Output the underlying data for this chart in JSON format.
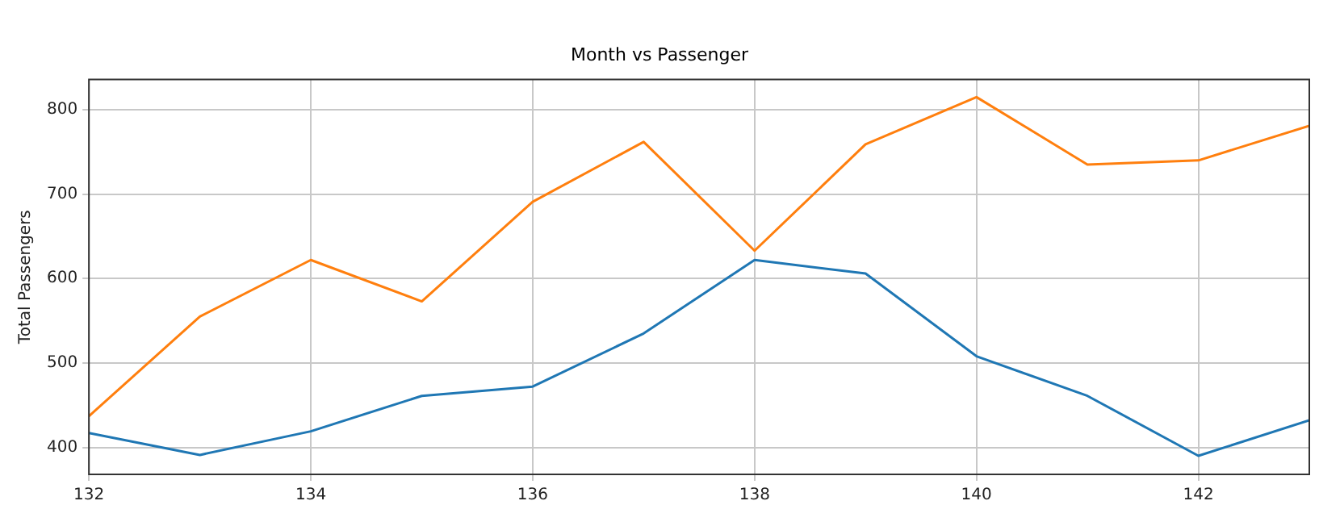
{
  "chart_data": {
    "type": "line",
    "title": "Month vs Passenger",
    "ylabel": "Total Passengers",
    "x": [
      132,
      133,
      134,
      135,
      136,
      137,
      138,
      139,
      140,
      141,
      142,
      143
    ],
    "series": [
      {
        "color": "#1f77b4",
        "values": [
          417,
          391,
          419,
          461,
          472,
          535,
          622,
          606,
          508,
          461,
          390,
          432
        ]
      },
      {
        "color": "#ff7f0e",
        "values": [
          437,
          555,
          622,
          573,
          691,
          762,
          633,
          759,
          815,
          735,
          740,
          781
        ]
      }
    ],
    "xlim": [
      132,
      143
    ],
    "xticks": [
      132,
      134,
      136,
      138,
      140,
      142
    ],
    "ylim": [
      368,
      836
    ],
    "yticks": [
      400,
      500,
      600,
      700,
      800
    ],
    "grid": true,
    "legend": false,
    "marker": "none",
    "line_style": "solid"
  }
}
